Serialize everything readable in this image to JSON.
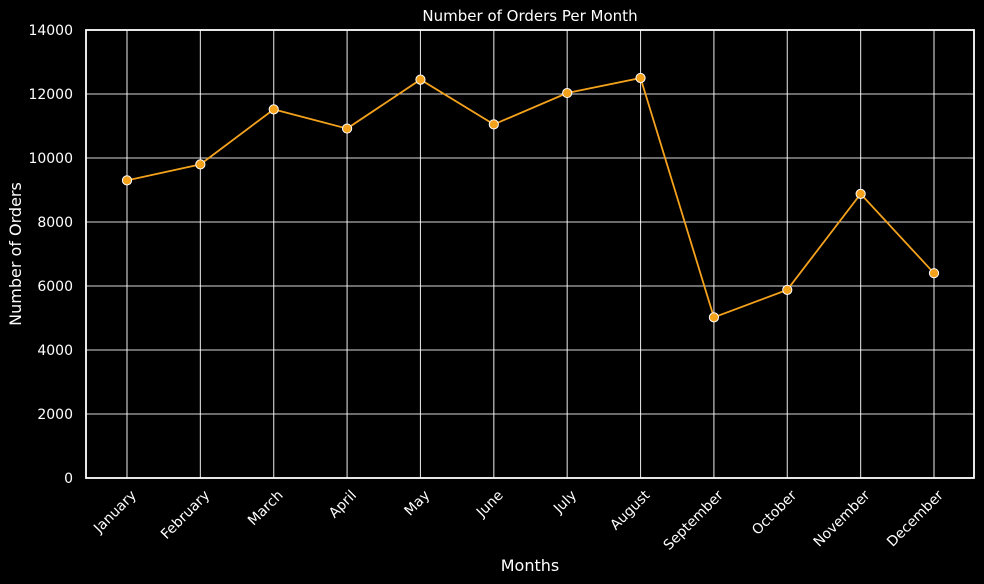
{
  "chart_data": {
    "type": "line",
    "title": "Number of Orders Per Month",
    "xlabel": "Months",
    "ylabel": "Number of Orders",
    "categories": [
      "January",
      "February",
      "March",
      "April",
      "May",
      "June",
      "July",
      "August",
      "September",
      "October",
      "November",
      "December"
    ],
    "series": [
      {
        "values": [
          9300,
          9800,
          11520,
          10920,
          12450,
          11050,
          12030,
          12500,
          5020,
          5880,
          8880,
          6400
        ]
      }
    ],
    "ylim": [
      0,
      14000
    ],
    "yticks": [
      0,
      2000,
      4000,
      6000,
      8000,
      10000,
      12000,
      14000
    ],
    "grid": true,
    "legend": "none",
    "colors": {
      "background": "#000000",
      "line": "#f4a21c",
      "marker_edge": "#ffffff",
      "grid": "#ffffff",
      "text": "#ffffff"
    }
  }
}
